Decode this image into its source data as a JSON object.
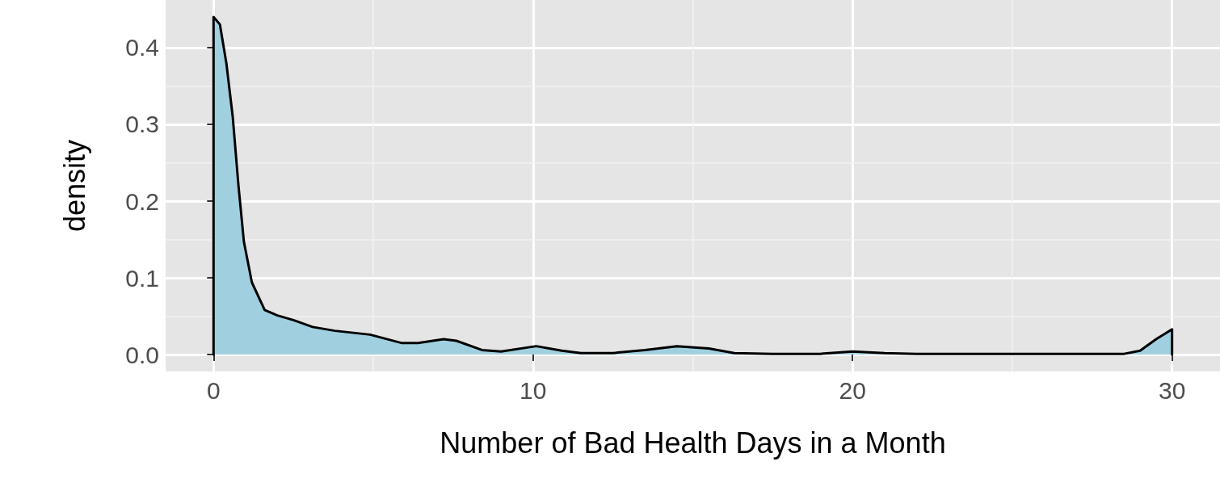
{
  "chart_data": {
    "type": "area",
    "xlabel": "Number of Bad Health Days in a Month",
    "ylabel": "density",
    "x": [
      0,
      0.2,
      0.4,
      0.6,
      0.78,
      0.95,
      1.2,
      1.6,
      2,
      2.5,
      3.1,
      3.8,
      4.9,
      5.9,
      6.4,
      7.2,
      7.6,
      8.4,
      9,
      10.1,
      10.9,
      11.5,
      12.5,
      13.5,
      14.5,
      15.5,
      16.3,
      17.5,
      19,
      20,
      21,
      22,
      25,
      28.5,
      29,
      29.5,
      30
    ],
    "series": [
      {
        "color": "#a0d0e0",
        "values": [
          0.44,
          0.43,
          0.38,
          0.31,
          0.22,
          0.147,
          0.094,
          0.058,
          0.051,
          0.045,
          0.036,
          0.031,
          0.026,
          0.015,
          0.015,
          0.02,
          0.018,
          0.006,
          0.004,
          0.011,
          0.005,
          0.002,
          0.002,
          0.006,
          0.011,
          0.008,
          0.002,
          0.001,
          0.001,
          0.004,
          0.002,
          0.001,
          0.001,
          0.001,
          0.005,
          0.02,
          0.033
        ]
      }
    ],
    "xlim": [
      -1.5,
      31.5
    ],
    "ylim": [
      -0.022,
      0.462
    ],
    "xticks": [
      0,
      10,
      20,
      30
    ],
    "yticks": [
      {
        "value": 0,
        "label": "0.0"
      },
      0.1,
      0.2,
      0.3,
      0.4
    ],
    "grid": true,
    "marker": "none",
    "line_style": "solid"
  }
}
